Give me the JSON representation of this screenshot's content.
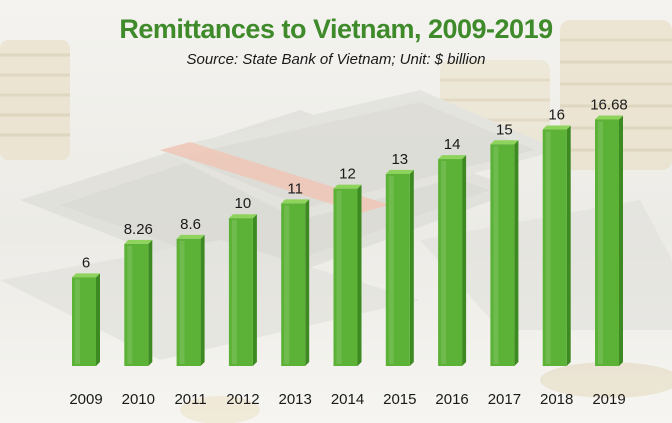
{
  "chart_data": {
    "type": "bar",
    "title": "Remittances to Vietnam, 2009-2019",
    "subtitle": "Source: State Bank of Vietnam; Unit: $ billion",
    "categories": [
      "2009",
      "2010",
      "2011",
      "2012",
      "2013",
      "2014",
      "2015",
      "2016",
      "2017",
      "2018",
      "2019"
    ],
    "values": [
      6,
      8.26,
      8.6,
      10,
      11,
      12,
      13,
      14,
      15,
      16,
      16.68
    ],
    "value_labels": [
      "6",
      "8.26",
      "8.6",
      "10",
      "11",
      "12",
      "13",
      "14",
      "15",
      "16",
      "16.68"
    ],
    "xlabel": "",
    "ylabel": "",
    "ylim": [
      0,
      18
    ],
    "grid": false,
    "legend": "none",
    "colors": {
      "bar_front": "#5cb236",
      "bar_side": "#3d8a22",
      "bar_top": "#8ed35c",
      "title": "#3f8a2a"
    }
  }
}
